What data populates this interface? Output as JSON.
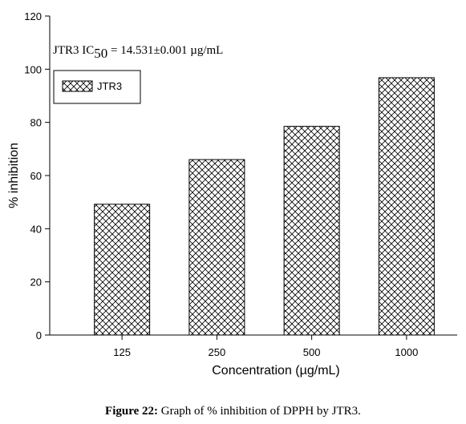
{
  "chart_data": {
    "type": "bar",
    "categories": [
      "125",
      "250",
      "500",
      "1000"
    ],
    "series": [
      {
        "name": "JTR3",
        "values": [
          49.2,
          66.0,
          78.5,
          96.8
        ]
      }
    ],
    "xlabel": "Concentration (µg/mL)",
    "ylabel": "% inhibition",
    "ylim": [
      0,
      120
    ],
    "yticks": [
      0,
      20,
      40,
      60,
      80,
      100,
      120
    ],
    "grid": false,
    "legend_position": "top-left",
    "annotation": {
      "prefix": "JTR3 IC",
      "subscript": "50",
      "suffix": " = 14.531±0.001 µg/mL"
    },
    "pattern": "crosshatch"
  },
  "caption": {
    "label": "Figure 22:",
    "text": " Graph of % inhibition of DPPH by JTR3."
  }
}
